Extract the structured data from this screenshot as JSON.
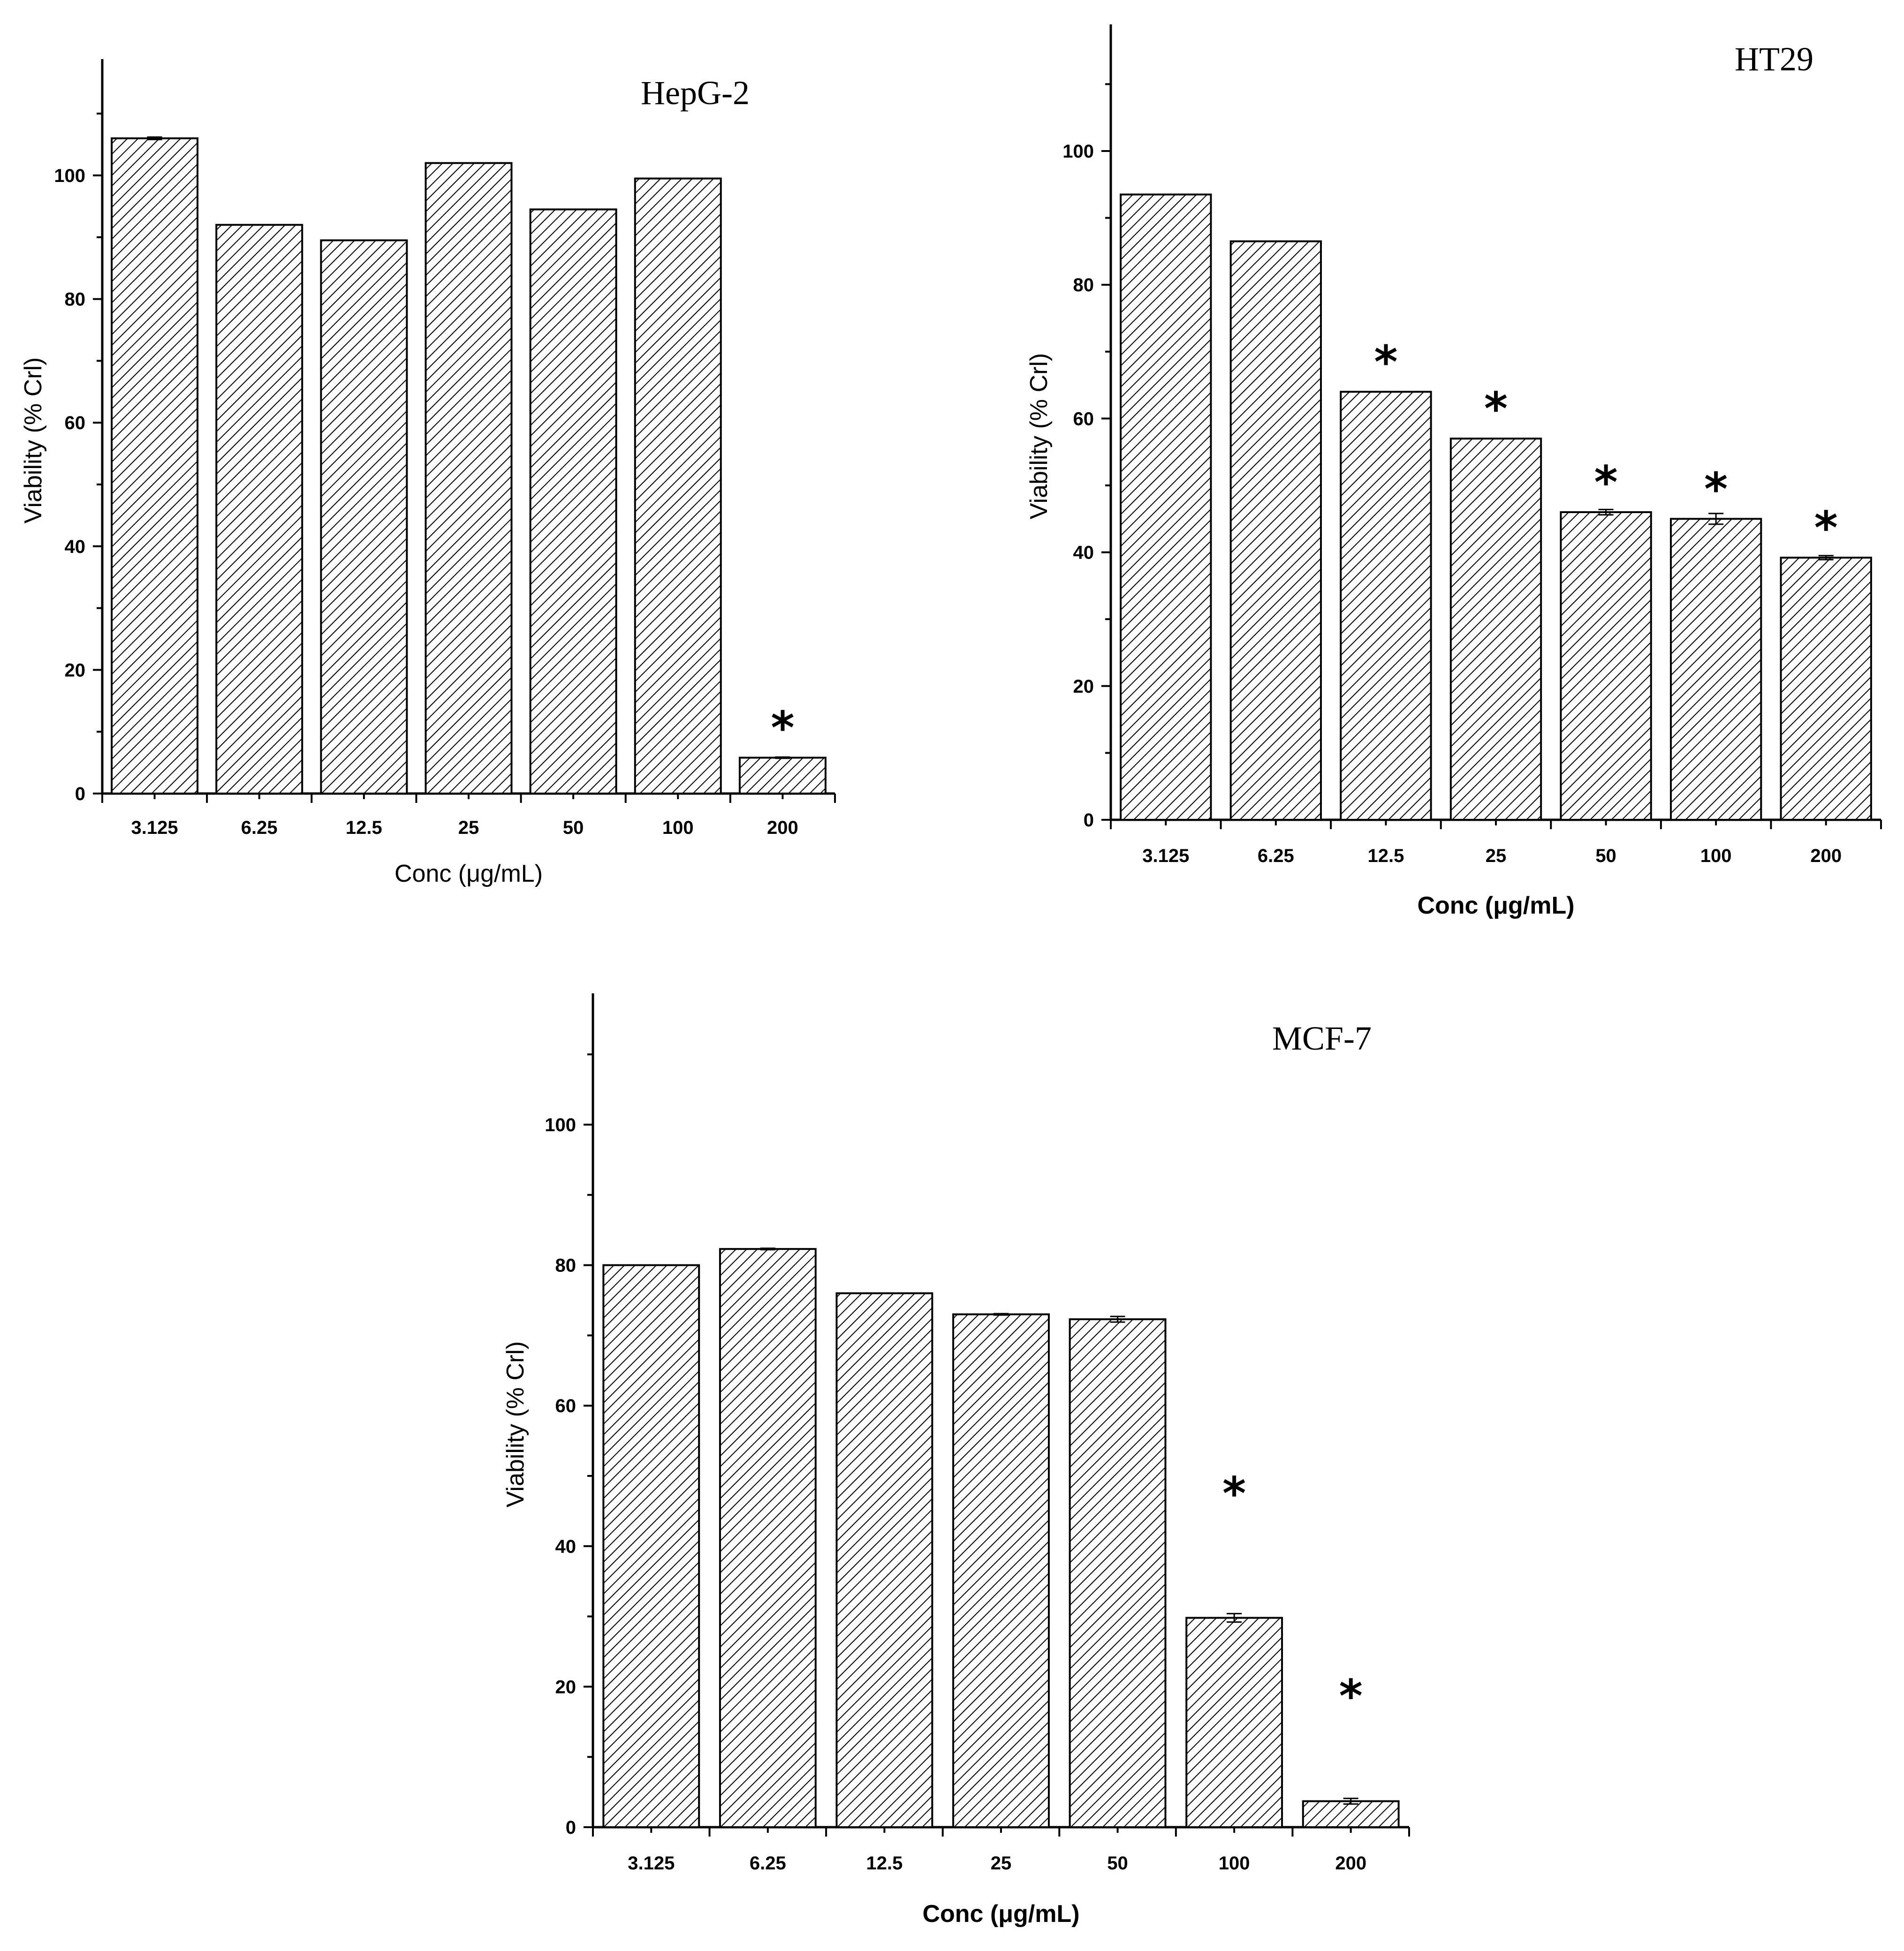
{
  "chart_data": [
    {
      "type": "bar",
      "title": "HepG-2",
      "xlabel": "Conc (μg/mL)",
      "ylabel": "Viability (% Crl)",
      "categories": [
        "3.125",
        "6.25",
        "12.5",
        "25",
        "50",
        "100",
        "200"
      ],
      "values": [
        106,
        92,
        89.5,
        102,
        94.5,
        99.5,
        5.8
      ],
      "errors": [
        0.2,
        0,
        0,
        0,
        0,
        0,
        0.1
      ],
      "significant": [
        false,
        false,
        false,
        false,
        false,
        false,
        true
      ],
      "yticks": [
        0,
        20,
        40,
        60,
        80,
        100
      ],
      "ylim": [
        0,
        118
      ],
      "grid": false
    },
    {
      "type": "bar",
      "title": "HT29",
      "xlabel": "Conc (μg/mL)",
      "ylabel": "Viability (% Crl)",
      "categories": [
        "3.125",
        "6.25",
        "12.5",
        "25",
        "50",
        "100",
        "200"
      ],
      "values": [
        93.5,
        86.5,
        64,
        57,
        46,
        45,
        39.2
      ],
      "errors": [
        0,
        0,
        0,
        0,
        0.4,
        0.8,
        0.3
      ],
      "significant": [
        false,
        false,
        true,
        true,
        true,
        true,
        true
      ],
      "yticks": [
        0,
        20,
        40,
        60,
        80,
        100
      ],
      "ylim": [
        0,
        118
      ],
      "grid": false
    },
    {
      "type": "bar",
      "title": "MCF-7",
      "xlabel": "Conc (μg/mL)",
      "ylabel": "Viability (% Crl)",
      "categories": [
        "3.125",
        "6.25",
        "12.5",
        "25",
        "50",
        "100",
        "200"
      ],
      "values": [
        80,
        82.3,
        76,
        73,
        72.3,
        29.8,
        3.7
      ],
      "errors": [
        0,
        0.1,
        0,
        0.1,
        0.4,
        0.6,
        0.4
      ],
      "significant": [
        false,
        false,
        false,
        false,
        false,
        true,
        true
      ],
      "yticks": [
        0,
        20,
        40,
        60,
        80,
        100
      ],
      "ylim": [
        0,
        118
      ],
      "grid": false
    }
  ],
  "significance_marker": "*"
}
